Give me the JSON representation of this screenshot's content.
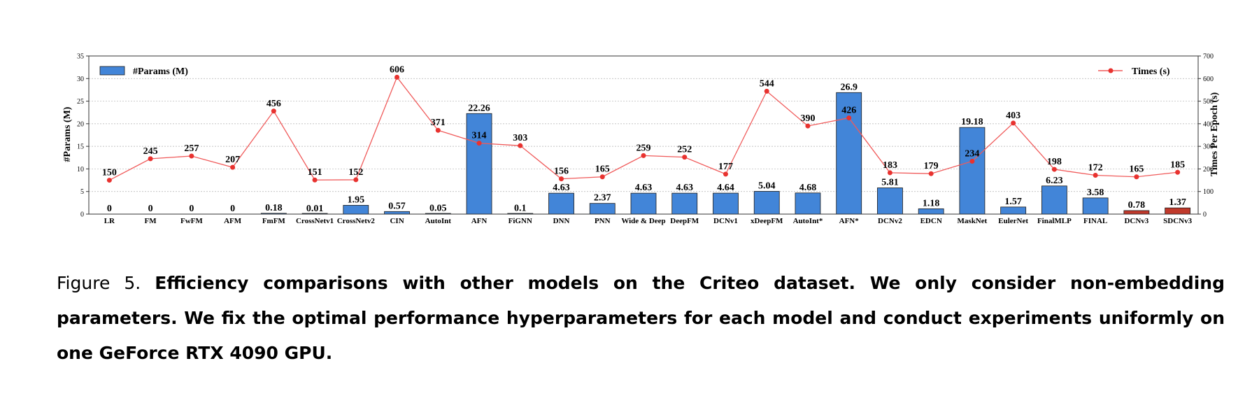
{
  "chart_data": {
    "type": "bar",
    "categories": [
      "LR",
      "FM",
      "FwFM",
      "AFM",
      "FmFM",
      "CrossNetv1",
      "CrossNetv2",
      "CIN",
      "AutoInt",
      "AFN",
      "FiGNN",
      "DNN",
      "PNN",
      "Wide & Deep",
      "DeepFM",
      "DCNv1",
      "xDeepFM",
      "AutoInt*",
      "AFN*",
      "DCNv2",
      "EDCN",
      "MaskNet",
      "EulerNet",
      "FinalMLP",
      "FINAL",
      "DCNv3",
      "SDCNv3"
    ],
    "series": [
      {
        "name": "#Params (M)",
        "kind": "bar",
        "axis": "left",
        "values": [
          0,
          0,
          0,
          0,
          0.18,
          0.01,
          1.95,
          0.57,
          0.05,
          22.26,
          0.1,
          4.63,
          2.37,
          4.63,
          4.63,
          4.64,
          5.04,
          4.68,
          26.9,
          5.81,
          1.18,
          19.18,
          1.57,
          6.23,
          3.58,
          0.78,
          1.37
        ],
        "labels": [
          "0",
          "0",
          "0",
          "0",
          "0.18",
          "0.01",
          "1.95",
          "0.57",
          "0.05",
          "22.26",
          "0.1",
          "4.63",
          "2.37",
          "4.63",
          "4.63",
          "4.64",
          "5.04",
          "4.68",
          "26.9",
          "5.81",
          "1.18",
          "19.18",
          "1.57",
          "6.23",
          "3.58",
          "0.78",
          "1.37"
        ]
      },
      {
        "name": "Times (s)",
        "kind": "line",
        "axis": "right",
        "values": [
          150,
          245,
          257,
          207,
          456,
          151,
          152,
          606,
          371,
          314,
          303,
          156,
          165,
          259,
          252,
          177,
          544,
          390,
          426,
          183,
          179,
          234,
          403,
          198,
          172,
          165,
          185
        ],
        "labels": [
          "150",
          "245",
          "257",
          "207",
          "456",
          "151",
          "152",
          "606",
          "371",
          "314",
          "303",
          "156",
          "165",
          "259",
          "252",
          "177",
          "544",
          "390",
          "426",
          "183",
          "179",
          "234",
          "403",
          "198",
          "172",
          "165",
          "185"
        ]
      }
    ],
    "ylabel": "#Params (M)",
    "y2label": "Times Per Epoch (s)",
    "ylim": [
      0,
      35
    ],
    "y2lim": [
      0,
      700
    ],
    "yticks": [
      "0",
      "5",
      "10",
      "15",
      "20",
      "25",
      "30",
      "35"
    ],
    "y2ticks": [
      "0",
      "100",
      "200",
      "300",
      "400",
      "500",
      "600",
      "700"
    ],
    "grid": true,
    "legend_left": "top-left",
    "legend_right": "top-right",
    "colors": {
      "bar": "#4285d8",
      "bar_highlight": "#c0392b",
      "line": "#f05a5a",
      "marker": "#e8322f"
    },
    "highlight_categories": [
      "DCNv3",
      "SDCNv3"
    ]
  },
  "caption": {
    "prefix": "Figure 5.",
    "text": "Efficiency comparisons with other models on the Criteo dataset. We only consider non-embedding parameters. We fix the optimal performance hyperparameters for each model and conduct experiments uniformly on one GeForce RTX 4090 GPU."
  }
}
